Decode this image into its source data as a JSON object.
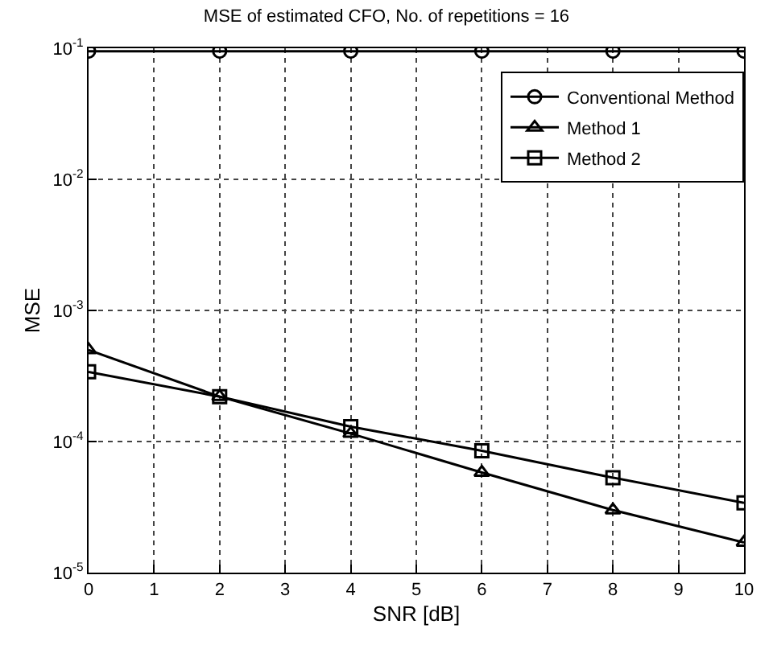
{
  "chart_data": {
    "type": "line",
    "title": "MSE of estimated CFO, No. of repetitions = 16",
    "xlabel": "SNR [dB]",
    "ylabel": "MSE",
    "x": [
      0,
      2,
      4,
      6,
      8,
      10
    ],
    "series": [
      {
        "name": "Conventional Method",
        "color": "#000000",
        "marker": "circle",
        "values": [
          0.095,
          0.095,
          0.095,
          0.095,
          0.095,
          0.095
        ]
      },
      {
        "name": "Method 1",
        "color": "#000000",
        "marker": "triangle",
        "values": [
          0.0005,
          0.00022,
          0.000115,
          5.8e-05,
          3e-05,
          1.7e-05
        ]
      },
      {
        "name": "Method 2",
        "color": "#000000",
        "marker": "square",
        "values": [
          0.00034,
          0.00022,
          0.00013,
          8.5e-05,
          5.3e-05,
          3.4e-05
        ]
      }
    ],
    "log": "y",
    "xlim": [
      0,
      10
    ],
    "ylim": [
      1e-05,
      0.1
    ],
    "xticks": [
      0,
      1,
      2,
      3,
      4,
      5,
      6,
      7,
      8,
      9,
      10
    ],
    "yticks": [
      {
        "value": 1e-05,
        "label": "10$^{-5}$"
      },
      {
        "value": 0.0001,
        "label": "10$^{-4}$"
      },
      {
        "value": 0.001,
        "label": "10$^{-3}$"
      },
      {
        "value": 0.01,
        "label": "10$^{-2}$"
      },
      {
        "value": 0.1,
        "label": "10$^{-1}$"
      }
    ],
    "grid": true,
    "legend": "top right",
    "line_style": "solid"
  }
}
